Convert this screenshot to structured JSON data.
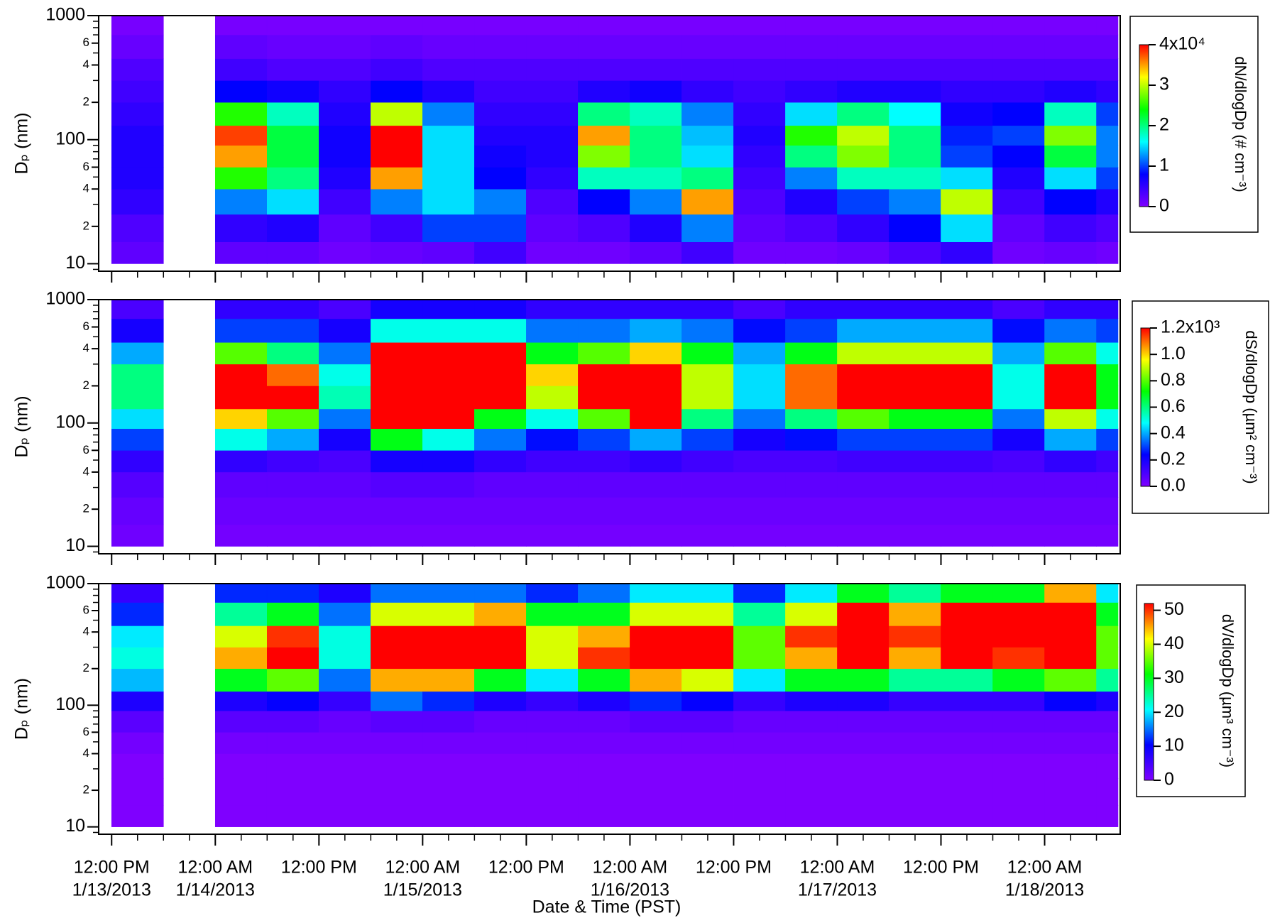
{
  "chart_data": [
    {
      "type": "heatmap",
      "ylabel": "Dₚ (nm)",
      "zlabel": "dN/dlogDp (# cm⁻³)",
      "log_y": true,
      "colormap": [
        "#7f00ff",
        "#0000ff",
        "#00ffff",
        "#00ff00",
        "#ffff00",
        "#ff0000"
      ],
      "xlim": [
        "2013-01-13 10:30",
        "2013-01-18 08:45"
      ],
      "ylim": [
        8.7,
        1000
      ],
      "yticks": [
        10,
        {
          "value": 20,
          "label": "2"
        },
        {
          "value": 40,
          "label": "4"
        },
        {
          "value": 60,
          "label": "6"
        },
        100,
        {
          "value": 200,
          "label": "2"
        },
        {
          "value": 400,
          "label": "4"
        },
        {
          "value": 600,
          "label": "6"
        },
        1000
      ],
      "zlim": [
        0,
        40000
      ],
      "zticks": [
        0,
        {
          "value": 10000,
          "label": "1"
        },
        {
          "value": 20000,
          "label": "2"
        },
        {
          "value": 30000,
          "label": "3"
        },
        {
          "value": 40000,
          "label": "4x10⁴"
        }
      ],
      "x": [
        "2013-01-13 12:00",
        "2013-01-13 18:00",
        "2013-01-14 00:00",
        "2013-01-14 06:00",
        "2013-01-14 12:00",
        "2013-01-14 18:00",
        "2013-01-15 00:00",
        "2013-01-15 06:00",
        "2013-01-15 12:00",
        "2013-01-15 18:00",
        "2013-01-16 00:00",
        "2013-01-16 06:00",
        "2013-01-16 12:00",
        "2013-01-16 18:00",
        "2013-01-17 00:00",
        "2013-01-17 06:00",
        "2013-01-17 12:00",
        "2013-01-17 18:00",
        "2013-01-18 00:00",
        "2013-01-18 06:00",
        "2013-01-18 08:30"
      ],
      "y": [
        10,
        15,
        25,
        40,
        60,
        90,
        130,
        200,
        300,
        450,
        700,
        1000
      ],
      "z": [
        [
          2000,
          3000,
          5000,
          6000,
          6000,
          6000,
          5000,
          4000,
          3000,
          1500,
          500
        ],
        null,
        [
          2000,
          5000,
          12000,
          25000,
          35000,
          38000,
          25000,
          8000,
          4000,
          2000,
          500
        ],
        [
          2000,
          6000,
          15000,
          20000,
          22000,
          22000,
          18000,
          7000,
          3000,
          1500,
          500
        ],
        [
          1000,
          2000,
          4000,
          6000,
          7000,
          7000,
          6000,
          5000,
          3000,
          1500,
          500
        ],
        [
          1500,
          4000,
          12000,
          35000,
          42000,
          45000,
          30000,
          8000,
          4000,
          2000,
          500
        ],
        [
          2000,
          10000,
          15000,
          15000,
          15000,
          15000,
          12000,
          6000,
          3000,
          1500,
          500
        ],
        [
          4000,
          10000,
          12000,
          8000,
          7000,
          6000,
          5000,
          4000,
          3000,
          1500,
          500
        ],
        [
          1000,
          2000,
          3000,
          5000,
          6000,
          6000,
          5000,
          4000,
          3000,
          1500,
          500
        ],
        [
          1000,
          3000,
          8000,
          18000,
          28000,
          35000,
          20000,
          6000,
          3000,
          1500,
          500
        ],
        [
          2000,
          6000,
          12000,
          18000,
          20000,
          20000,
          18000,
          7000,
          3000,
          1500,
          500
        ],
        [
          4000,
          12000,
          35000,
          20000,
          15000,
          14000,
          12000,
          5000,
          3000,
          1500,
          500
        ],
        [
          1000,
          2000,
          3000,
          4000,
          5000,
          6000,
          5000,
          4000,
          3000,
          1500,
          500
        ],
        [
          1000,
          3000,
          6000,
          12000,
          20000,
          25000,
          15000,
          5000,
          3000,
          1500,
          500
        ],
        [
          1500,
          5000,
          10000,
          18000,
          28000,
          30000,
          20000,
          6000,
          3000,
          1500,
          500
        ],
        [
          3000,
          8000,
          12000,
          18000,
          20000,
          20000,
          16000,
          6000,
          3000,
          1500,
          500
        ],
        [
          5000,
          15000,
          30000,
          15000,
          10000,
          9000,
          7000,
          5000,
          3000,
          1500,
          500
        ],
        [
          1000,
          2000,
          4000,
          6000,
          8000,
          10000,
          8000,
          5000,
          3000,
          1500,
          500
        ],
        [
          1500,
          4000,
          8000,
          15000,
          22000,
          28000,
          18000,
          6000,
          3000,
          1500,
          500
        ],
        [
          1000,
          3000,
          6000,
          10000,
          12000,
          12000,
          10000,
          5000,
          3000,
          1500,
          500
        ]
      ]
    },
    {
      "type": "heatmap",
      "ylabel": "Dₚ (nm)",
      "zlabel": "dS/dlogDp (µm² cm⁻³)",
      "log_y": true,
      "colormap": [
        "#7f00ff",
        "#0000ff",
        "#00ffff",
        "#00ff00",
        "#ffff00",
        "#ff0000"
      ],
      "xlim": [
        "2013-01-13 10:30",
        "2013-01-18 08:45"
      ],
      "ylim": [
        8.7,
        1000
      ],
      "yticks": [
        10,
        {
          "value": 20,
          "label": "2"
        },
        {
          "value": 40,
          "label": "4"
        },
        {
          "value": 60,
          "label": "6"
        },
        100,
        {
          "value": 200,
          "label": "2"
        },
        {
          "value": 400,
          "label": "4"
        },
        {
          "value": 600,
          "label": "6"
        },
        1000
      ],
      "zlim": [
        0,
        1200
      ],
      "zticks": [
        {
          "value": 0,
          "label": "0.0"
        },
        {
          "value": 200,
          "label": "0.2"
        },
        {
          "value": 400,
          "label": "0.4"
        },
        {
          "value": 600,
          "label": "0.6"
        },
        {
          "value": 800,
          "label": "0.8"
        },
        {
          "value": 1000,
          "label": "1.0"
        },
        {
          "value": 1200,
          "label": "1.2x10³"
        }
      ],
      "x": [
        "2013-01-13 12:00",
        "2013-01-13 18:00",
        "2013-01-14 00:00",
        "2013-01-14 06:00",
        "2013-01-14 12:00",
        "2013-01-14 18:00",
        "2013-01-15 00:00",
        "2013-01-15 06:00",
        "2013-01-15 12:00",
        "2013-01-15 18:00",
        "2013-01-16 00:00",
        "2013-01-16 06:00",
        "2013-01-16 12:00",
        "2013-01-16 18:00",
        "2013-01-17 00:00",
        "2013-01-17 06:00",
        "2013-01-17 12:00",
        "2013-01-17 18:00",
        "2013-01-18 00:00",
        "2013-01-18 06:00",
        "2013-01-18 08:30"
      ],
      "y": [
        10,
        15,
        25,
        40,
        60,
        90,
        130,
        200,
        300,
        450,
        700,
        1000
      ],
      "z": [
        [
          30,
          50,
          80,
          150,
          300,
          450,
          600,
          600,
          400,
          200,
          100
        ],
        null,
        [
          20,
          40,
          60,
          150,
          500,
          1000,
          1300,
          1300,
          800,
          300,
          150
        ],
        [
          20,
          40,
          60,
          120,
          400,
          800,
          1200,
          1100,
          600,
          300,
          150
        ],
        [
          20,
          40,
          60,
          100,
          200,
          350,
          550,
          500,
          350,
          200,
          100
        ],
        [
          20,
          40,
          80,
          200,
          700,
          1300,
          1400,
          1400,
          1300,
          500,
          200
        ],
        [
          20,
          40,
          80,
          200,
          500,
          1200,
          1400,
          1400,
          1300,
          500,
          200
        ],
        [
          20,
          40,
          60,
          150,
          350,
          700,
          1300,
          1400,
          1300,
          500,
          200
        ],
        [
          20,
          40,
          60,
          120,
          250,
          500,
          900,
          1000,
          700,
          350,
          150
        ],
        [
          20,
          40,
          60,
          120,
          300,
          800,
          1300,
          1300,
          800,
          350,
          150
        ],
        [
          20,
          40,
          60,
          150,
          400,
          1200,
          1400,
          1400,
          1000,
          400,
          150
        ],
        [
          20,
          40,
          60,
          120,
          300,
          600,
          900,
          900,
          700,
          350,
          150
        ],
        [
          20,
          40,
          60,
          100,
          200,
          350,
          450,
          450,
          400,
          250,
          100
        ],
        [
          20,
          40,
          60,
          100,
          250,
          600,
          1100,
          1100,
          700,
          300,
          150
        ],
        [
          20,
          40,
          60,
          120,
          300,
          800,
          1300,
          1300,
          900,
          400,
          150
        ],
        [
          20,
          40,
          60,
          120,
          300,
          700,
          1300,
          1300,
          900,
          400,
          150
        ],
        [
          20,
          40,
          60,
          120,
          300,
          700,
          1200,
          1300,
          900,
          400,
          150
        ],
        [
          20,
          40,
          60,
          100,
          200,
          350,
          500,
          500,
          400,
          250,
          100
        ],
        [
          20,
          40,
          60,
          150,
          400,
          900,
          1400,
          1400,
          800,
          350,
          150
        ],
        [
          20,
          40,
          60,
          120,
          300,
          500,
          700,
          700,
          500,
          300,
          150
        ]
      ]
    },
    {
      "type": "heatmap",
      "ylabel": "Dₚ (nm)",
      "zlabel": "dV/dlogDp (µm³ cm⁻³)",
      "log_y": true,
      "colormap": [
        "#7f00ff",
        "#0000ff",
        "#00ffff",
        "#00ff00",
        "#ffff00",
        "#ff0000"
      ],
      "xlabel": "Date & Time (PST)",
      "xlim": [
        "2013-01-13 10:30",
        "2013-01-18 08:45"
      ],
      "ylim": [
        8.7,
        1000
      ],
      "xticks": [
        {
          "value": "2013-01-13 12:00",
          "label": "12:00 PM"
        },
        {
          "value": "2013-01-14 00:00",
          "label": "12:00 AM"
        },
        {
          "value": "2013-01-14 12:00",
          "label": "12:00 PM"
        },
        {
          "value": "2013-01-15 00:00",
          "label": "12:00 AM"
        },
        {
          "value": "2013-01-15 12:00",
          "label": "12:00 PM"
        },
        {
          "value": "2013-01-16 00:00",
          "label": "12:00 AM"
        },
        {
          "value": "2013-01-16 12:00",
          "label": "12:00 PM"
        },
        {
          "value": "2013-01-17 00:00",
          "label": "12:00 AM"
        },
        {
          "value": "2013-01-17 12:00",
          "label": "12:00 PM"
        },
        {
          "value": "2013-01-18 00:00",
          "label": "12:00 AM"
        }
      ],
      "xdate_labels": [
        {
          "value": "2013-01-13 12:00",
          "label": "1/13/2013"
        },
        {
          "value": "2013-01-14 00:00",
          "label": "1/14/2013"
        },
        {
          "value": "2013-01-15 00:00",
          "label": "1/15/2013"
        },
        {
          "value": "2013-01-16 00:00",
          "label": "1/16/2013"
        },
        {
          "value": "2013-01-17 00:00",
          "label": "1/17/2013"
        },
        {
          "value": "2013-01-18 00:00",
          "label": "1/18/2013"
        }
      ],
      "x_minor_tick_hours": 3,
      "yticks": [
        10,
        {
          "value": 20,
          "label": "2"
        },
        {
          "value": 40,
          "label": "4"
        },
        {
          "value": 60,
          "label": "6"
        },
        100,
        {
          "value": 200,
          "label": "2"
        },
        {
          "value": 400,
          "label": "4"
        },
        {
          "value": 600,
          "label": "6"
        },
        1000
      ],
      "zlim": [
        0,
        52
      ],
      "zticks": [
        0,
        10,
        20,
        30,
        40,
        50
      ],
      "x": [
        "2013-01-13 12:00",
        "2013-01-13 18:00",
        "2013-01-14 00:00",
        "2013-01-14 06:00",
        "2013-01-14 12:00",
        "2013-01-14 18:00",
        "2013-01-15 00:00",
        "2013-01-15 06:00",
        "2013-01-15 12:00",
        "2013-01-15 18:00",
        "2013-01-16 00:00",
        "2013-01-16 06:00",
        "2013-01-16 12:00",
        "2013-01-16 18:00",
        "2013-01-17 00:00",
        "2013-01-17 06:00",
        "2013-01-17 12:00",
        "2013-01-17 18:00",
        "2013-01-18 00:00",
        "2013-01-18 06:00",
        "2013-01-18 08:30"
      ],
      "y": [
        10,
        15,
        25,
        40,
        60,
        90,
        130,
        200,
        300,
        450,
        700,
        1000
      ],
      "z": [
        [
          0,
          0,
          0,
          1,
          3,
          8,
          18,
          22,
          20,
          12,
          6
        ],
        null,
        [
          0,
          0,
          0,
          1,
          3,
          8,
          30,
          45,
          40,
          25,
          12
        ],
        [
          0,
          0,
          0,
          1,
          3,
          10,
          35,
          55,
          50,
          30,
          12
        ],
        [
          0,
          0,
          0,
          1,
          2,
          6,
          15,
          22,
          22,
          15,
          8
        ],
        [
          0,
          0,
          0,
          1,
          3,
          15,
          45,
          60,
          60,
          40,
          15
        ],
        [
          0,
          0,
          0,
          1,
          3,
          12,
          45,
          60,
          60,
          40,
          15
        ],
        [
          0,
          0,
          0,
          1,
          2,
          8,
          30,
          60,
          60,
          45,
          15
        ],
        [
          0,
          0,
          0,
          1,
          2,
          6,
          20,
          40,
          40,
          30,
          12
        ],
        [
          0,
          0,
          0,
          1,
          2,
          8,
          30,
          50,
          45,
          30,
          15
        ],
        [
          0,
          0,
          0,
          1,
          3,
          12,
          45,
          60,
          55,
          40,
          20
        ],
        [
          0,
          0,
          0,
          1,
          3,
          10,
          40,
          60,
          55,
          40,
          20
        ],
        [
          0,
          0,
          0,
          1,
          2,
          6,
          20,
          35,
          35,
          25,
          12
        ],
        [
          0,
          0,
          0,
          1,
          2,
          8,
          30,
          45,
          50,
          40,
          20
        ],
        [
          0,
          0,
          0,
          1,
          2,
          8,
          30,
          55,
          60,
          55,
          30
        ],
        [
          0,
          0,
          0,
          1,
          2,
          6,
          25,
          45,
          50,
          45,
          25
        ],
        [
          0,
          0,
          0,
          1,
          2,
          6,
          25,
          55,
          60,
          55,
          30
        ],
        [
          0,
          0,
          0,
          1,
          2,
          6,
          30,
          50,
          55,
          55,
          30
        ],
        [
          0,
          0,
          0,
          1,
          2,
          10,
          35,
          55,
          60,
          60,
          45
        ],
        [
          0,
          0,
          0,
          1,
          2,
          8,
          25,
          35,
          35,
          30,
          20
        ]
      ]
    }
  ]
}
